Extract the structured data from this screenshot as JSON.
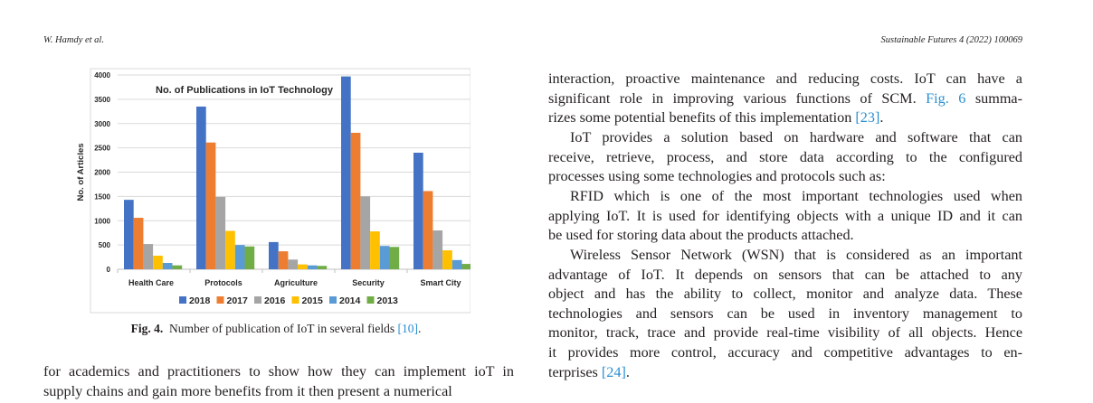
{
  "header": {
    "left": "W. Hamdy et al.",
    "right": "Sustainable Futures 4 (2022) 100069"
  },
  "figure": {
    "caption_label": "Fig. 4.",
    "caption_text": "Number of publication of IoT in several fields ",
    "caption_ref": "[10]",
    "caption_end": "."
  },
  "chart_data": {
    "type": "bar",
    "title": "No. of Publications in IoT Technology",
    "xlabel": "",
    "ylabel": "No. of Articles",
    "ylim": [
      0,
      4000
    ],
    "yticks": [
      0,
      500,
      1000,
      1500,
      2000,
      2500,
      3000,
      3500,
      4000
    ],
    "grid": true,
    "legend_placement": "bottom",
    "categories": [
      "Health Care",
      "Protocols",
      "Agriculture",
      "Security",
      "Smart City"
    ],
    "series": [
      {
        "name": "2018",
        "color": "#4472c4",
        "values": [
          1430,
          3350,
          560,
          3970,
          2400
        ]
      },
      {
        "name": "2017",
        "color": "#ed7d31",
        "values": [
          1060,
          2610,
          370,
          2810,
          1610
        ]
      },
      {
        "name": "2016",
        "color": "#a5a5a5",
        "values": [
          520,
          1490,
          200,
          1500,
          800
        ]
      },
      {
        "name": "2015",
        "color": "#ffc000",
        "values": [
          280,
          790,
          100,
          780,
          390
        ]
      },
      {
        "name": "2014",
        "color": "#5b9bd5",
        "values": [
          130,
          500,
          80,
          480,
          190
        ]
      },
      {
        "name": "2013",
        "color": "#70ad47",
        "values": [
          80,
          470,
          70,
          460,
          110
        ]
      }
    ]
  },
  "left_text": [
    [
      {
        "t": "for academics and practitioners to show how they can implement ioT in"
      }
    ],
    [
      {
        "t": "supply chains and gain more benefits from it then present a numerical"
      }
    ]
  ],
  "right_text": [
    [
      {
        "t": "interaction, proactive maintenance and reducing costs. IoT can have a"
      }
    ],
    [
      {
        "t": "significant role in improving various functions of SCM. "
      },
      {
        "t": "Fig. 6",
        "link": true
      },
      {
        "t": " summa-"
      }
    ],
    [
      {
        "t": "rizes some potential benefits of this implementation "
      },
      {
        "t": "[23]",
        "link": true
      },
      {
        "t": "."
      }
    ],
    [
      {
        "t": "    IoT provides a solution based on hardware and software that can"
      }
    ],
    [
      {
        "t": "receive, retrieve, process, and store data according to the configured"
      }
    ],
    [
      {
        "t": "processes using some technologies and protocols such as:"
      }
    ],
    [
      {
        "t": "    RFID which is one of the most important technologies used when"
      }
    ],
    [
      {
        "t": "applying IoT. It is used for identifying objects with a unique ID and it can"
      }
    ],
    [
      {
        "t": "be used for storing data about the products attached."
      }
    ],
    [
      {
        "t": "    Wireless Sensor Network (WSN) that is considered as an important"
      }
    ],
    [
      {
        "t": "advantage of IoT. It depends on sensors that can be attached to any"
      }
    ],
    [
      {
        "t": "object and has the ability to collect, monitor and analyze data. These"
      }
    ],
    [
      {
        "t": "technologies and sensors can be used in inventory management to"
      }
    ],
    [
      {
        "t": "monitor, track, trace and provide real-time visibility of all objects. Hence"
      }
    ],
    [
      {
        "t": "it provides more control, accuracy and competitive advantages to en-"
      }
    ],
    [
      {
        "t": "terprises "
      },
      {
        "t": "[24]",
        "link": true
      },
      {
        "t": "."
      }
    ]
  ]
}
